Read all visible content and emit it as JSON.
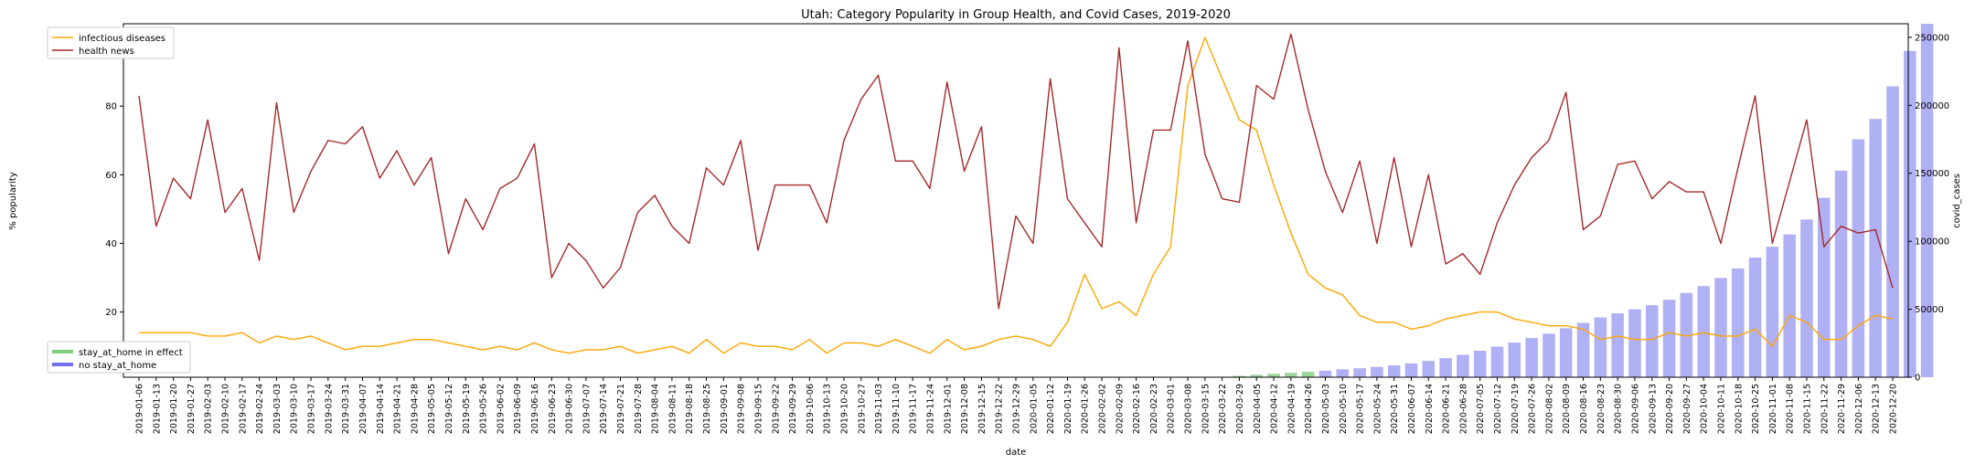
{
  "chart_data": {
    "type": "line",
    "title": "Utah: Category Popularity in Group Health, and Covid Cases, 2019-2020",
    "xlabel": "date",
    "ylabel": "% popularity",
    "y2label": "covid_cases",
    "ylim": [
      1,
      104
    ],
    "y2lim": [
      0,
      260000
    ],
    "yticks": [
      20,
      40,
      60,
      80,
      100
    ],
    "y2ticks": [
      0,
      50000,
      100000,
      150000,
      200000,
      250000
    ],
    "grid": false,
    "legend_top": {
      "placement": "top-left",
      "entries": [
        "infectious diseases",
        "health news"
      ]
    },
    "legend_bottom": {
      "placement": "bottom-left",
      "entries": [
        "stay_at_home in effect",
        "no stay_at_home"
      ]
    },
    "colors": {
      "infectious": "#ffa500",
      "health": "#a52a2a",
      "stay_bar": "#9ad79a",
      "no_stay_bar": "#b0b0f5",
      "stay_legend": "#7fcf7f",
      "no_stay_legend": "#7070f0"
    },
    "categories": [
      "2019-01-06",
      "2019-01-13",
      "2019-01-20",
      "2019-01-27",
      "2019-02-03",
      "2019-02-10",
      "2019-02-17",
      "2019-02-24",
      "2019-03-03",
      "2019-03-10",
      "2019-03-17",
      "2019-03-24",
      "2019-03-31",
      "2019-04-07",
      "2019-04-14",
      "2019-04-21",
      "2019-04-28",
      "2019-05-05",
      "2019-05-12",
      "2019-05-19",
      "2019-05-26",
      "2019-06-02",
      "2019-06-09",
      "2019-06-16",
      "2019-06-23",
      "2019-06-30",
      "2019-07-07",
      "2019-07-14",
      "2019-07-21",
      "2019-07-28",
      "2019-08-04",
      "2019-08-11",
      "2019-08-18",
      "2019-08-25",
      "2019-09-01",
      "2019-09-08",
      "2019-09-15",
      "2019-09-22",
      "2019-09-29",
      "2019-10-06",
      "2019-10-13",
      "2019-10-20",
      "2019-10-27",
      "2019-11-03",
      "2019-11-10",
      "2019-11-17",
      "2019-11-24",
      "2019-12-01",
      "2019-12-08",
      "2019-12-15",
      "2019-12-22",
      "2019-12-29",
      "2020-01-05",
      "2020-01-12",
      "2020-01-19",
      "2020-01-26",
      "2020-02-02",
      "2020-02-09",
      "2020-02-16",
      "2020-02-23",
      "2020-03-01",
      "2020-03-08",
      "2020-03-15",
      "2020-03-22",
      "2020-03-29",
      "2020-04-05",
      "2020-04-12",
      "2020-04-19",
      "2020-04-26",
      "2020-05-03",
      "2020-05-10",
      "2020-05-17",
      "2020-05-24",
      "2020-05-31",
      "2020-06-07",
      "2020-06-14",
      "2020-06-21",
      "2020-06-28",
      "2020-07-05",
      "2020-07-12",
      "2020-07-19",
      "2020-07-26",
      "2020-08-02",
      "2020-08-09",
      "2020-08-16",
      "2020-08-23",
      "2020-08-30",
      "2020-09-06",
      "2020-09-13",
      "2020-09-20",
      "2020-09-27",
      "2020-10-04",
      "2020-10-11",
      "2020-10-18",
      "2020-10-25",
      "2020-11-01",
      "2020-11-08",
      "2020-11-15",
      "2020-11-22",
      "2020-11-29",
      "2020-12-06",
      "2020-12-13",
      "2020-12-20"
    ],
    "series": [
      {
        "name": "infectious diseases",
        "axis": "left",
        "values": [
          14,
          14,
          14,
          14,
          13,
          13,
          14,
          11,
          13,
          12,
          13,
          11,
          9,
          10,
          10,
          11,
          12,
          12,
          11,
          10,
          9,
          10,
          9,
          11,
          9,
          8,
          9,
          9,
          10,
          8,
          9,
          10,
          8,
          12,
          8,
          11,
          10,
          10,
          9,
          12,
          8,
          11,
          11,
          10,
          12,
          10,
          8,
          12,
          9,
          10,
          12,
          13,
          12,
          10,
          17,
          31,
          21,
          23,
          19,
          31,
          39,
          86,
          100,
          88,
          76,
          73,
          57,
          43,
          31,
          27,
          25,
          19,
          17,
          17,
          15,
          16,
          18,
          19,
          20,
          20,
          18,
          17,
          16,
          16,
          15,
          12,
          13,
          12,
          12,
          14,
          13,
          14,
          13,
          13,
          15,
          10,
          19,
          17,
          12,
          12,
          16,
          19,
          18
        ]
      },
      {
        "name": "health news",
        "axis": "left",
        "values": [
          83,
          45,
          59,
          53,
          76,
          49,
          56,
          35,
          81,
          49,
          61,
          70,
          69,
          74,
          59,
          67,
          57,
          65,
          37,
          53,
          44,
          56,
          59,
          69,
          30,
          40,
          35,
          27,
          33,
          49,
          54,
          45,
          40,
          62,
          57,
          70,
          38,
          57,
          57,
          57,
          46,
          70,
          82,
          89,
          64,
          64,
          56,
          87,
          61,
          74,
          21,
          48,
          40,
          88,
          53,
          46,
          39,
          97,
          46,
          73,
          73,
          99,
          66,
          53,
          52,
          86,
          82,
          101,
          79,
          61,
          49,
          64,
          40,
          65,
          39,
          60,
          34,
          37,
          31,
          46,
          57,
          65,
          70,
          84,
          44,
          48,
          63,
          64,
          53,
          58,
          55,
          55,
          40,
          62,
          83,
          40,
          58,
          76,
          39,
          45,
          43,
          44,
          27
        ]
      }
    ],
    "bar_series": {
      "name": "covid_cases",
      "axis": "right",
      "values": [
        0,
        0,
        0,
        0,
        0,
        0,
        0,
        0,
        0,
        0,
        0,
        0,
        0,
        0,
        0,
        0,
        0,
        0,
        0,
        0,
        0,
        0,
        0,
        0,
        0,
        0,
        0,
        0,
        0,
        0,
        0,
        0,
        0,
        0,
        0,
        0,
        0,
        0,
        0,
        0,
        0,
        0,
        0,
        0,
        0,
        0,
        0,
        0,
        0,
        0,
        0,
        0,
        0,
        0,
        0,
        0,
        0,
        0,
        0,
        0,
        0,
        0,
        0,
        300,
        1000,
        1800,
        2600,
        3200,
        4000,
        4800,
        5800,
        6600,
        7600,
        8800,
        10200,
        12000,
        14000,
        16500,
        19500,
        22500,
        25500,
        28800,
        32000,
        36000,
        40000,
        44000,
        47000,
        50000,
        53000,
        57000,
        62000,
        67000,
        73000,
        80000,
        88000,
        96000,
        105000,
        116000,
        132000,
        152000,
        175000,
        190000,
        214000,
        240000,
        260000
      ],
      "stay_at_home_categories": [
        "2020-03-29",
        "2020-04-05",
        "2020-04-12",
        "2020-04-19",
        "2020-04-26"
      ]
    }
  }
}
